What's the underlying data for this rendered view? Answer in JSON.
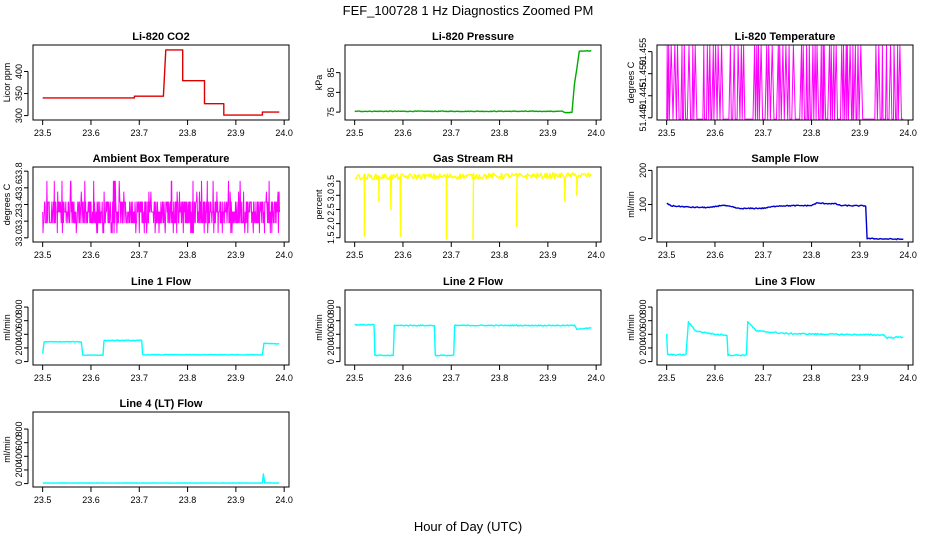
{
  "figure": {
    "title": "FEF_100728  1 Hz Diagnostics Zoomed PM",
    "xlabel": "Hour of Day (UTC)"
  },
  "chart_data": [
    {
      "type": "line",
      "title": "Li-820 CO2",
      "ylabel": "Licor ppm",
      "color": "#dd0000",
      "xlim": [
        23.48,
        24.01
      ],
      "ylim": [
        290,
        460
      ],
      "xticks": [
        "23.5",
        "23.6",
        "23.7",
        "23.8",
        "23.9",
        "24.0"
      ],
      "yticks": [
        {
          "v": 300,
          "label": "300"
        },
        {
          "v": 350,
          "label": "350"
        },
        {
          "v": 400,
          "label": "400"
        }
      ],
      "noise": 0,
      "points": [
        [
          23.5,
          340
        ],
        [
          23.69,
          340
        ],
        [
          23.69,
          344
        ],
        [
          23.75,
          344
        ],
        [
          23.755,
          449
        ],
        [
          23.765,
          449
        ],
        [
          23.79,
          449
        ],
        [
          23.79,
          379
        ],
        [
          23.835,
          379
        ],
        [
          23.835,
          327
        ],
        [
          23.875,
          327
        ],
        [
          23.875,
          301
        ],
        [
          23.955,
          301
        ],
        [
          23.955,
          308
        ],
        [
          23.99,
          308
        ]
      ]
    },
    {
      "type": "line",
      "title": "Li-820 Pressure",
      "ylabel": "kPa",
      "color": "#00aa00",
      "xlim": [
        23.48,
        24.01
      ],
      "ylim": [
        73,
        92
      ],
      "xticks": [
        "23.5",
        "23.6",
        "23.7",
        "23.8",
        "23.9",
        "24.0"
      ],
      "yticks": [
        {
          "v": 75,
          "label": "75"
        },
        {
          "v": 80,
          "label": "80"
        },
        {
          "v": 85,
          "label": "85"
        }
      ],
      "noise": 0.08,
      "points": [
        [
          23.5,
          75.2
        ],
        [
          23.93,
          75.2
        ],
        [
          23.935,
          74.9
        ],
        [
          23.95,
          74.9
        ],
        [
          23.955,
          82
        ],
        [
          23.96,
          86
        ],
        [
          23.965,
          90.5
        ],
        [
          23.99,
          90.5
        ]
      ]
    },
    {
      "type": "step",
      "title": "Li-820 Temperature",
      "ylabel": "degrees C",
      "color": "#ff00ff",
      "xlim": [
        23.48,
        24.01
      ],
      "ylim": [
        51.4395,
        51.4565
      ],
      "xticks": [
        "23.5",
        "23.6",
        "23.7",
        "23.8",
        "23.9",
        "24.0"
      ],
      "yticks": [
        {
          "v": 51.44,
          "label": "51.440"
        },
        {
          "v": 51.445,
          "label": "51.445"
        },
        {
          "v": 51.45,
          "label": "51.450"
        },
        {
          "v": 51.455,
          "label": "51.455"
        }
      ],
      "levels": [
        51.4397,
        51.4563
      ],
      "xrange": [
        23.5,
        23.99
      ]
    },
    {
      "type": "noise",
      "title": "Ambient Box Temperature",
      "ylabel": "degrees C",
      "color": "#ff00ff",
      "xlim": [
        23.48,
        24.01
      ],
      "ylim": [
        32.95,
        33.85
      ],
      "xticks": [
        "23.5",
        "23.6",
        "23.7",
        "23.8",
        "23.9",
        "24.0"
      ],
      "yticks": [
        {
          "v": 33.0,
          "label": "33.0"
        },
        {
          "v": 33.2,
          "label": "33.2"
        },
        {
          "v": 33.4,
          "label": "33.4"
        },
        {
          "v": 33.6,
          "label": "33.6"
        },
        {
          "v": 33.8,
          "label": "33.8"
        }
      ],
      "levels": [
        33.06,
        33.18,
        33.31,
        33.43,
        33.55,
        33.68
      ],
      "xrange": [
        23.5,
        23.99
      ]
    },
    {
      "type": "line",
      "title": "Gas Stream RH",
      "ylabel": "percent",
      "color": "#ffff00",
      "xlim": [
        23.48,
        24.01
      ],
      "ylim": [
        1.35,
        4.0
      ],
      "xticks": [
        "23.5",
        "23.6",
        "23.7",
        "23.8",
        "23.9",
        "24.0"
      ],
      "yticks": [
        {
          "v": 1.5,
          "label": "1.5"
        },
        {
          "v": 2.0,
          "label": "2.0"
        },
        {
          "v": 2.5,
          "label": "2.5"
        },
        {
          "v": 3.0,
          "label": "3.0"
        },
        {
          "v": 3.5,
          "label": "3.5"
        }
      ],
      "noise": 0.1,
      "points": [
        [
          23.5,
          3.65
        ],
        [
          23.99,
          3.7
        ]
      ],
      "spikes": [
        [
          23.52,
          1.55
        ],
        [
          23.55,
          2.8
        ],
        [
          23.575,
          2.5
        ],
        [
          23.595,
          1.55
        ],
        [
          23.69,
          1.45
        ],
        [
          23.745,
          1.45
        ],
        [
          23.835,
          1.9
        ],
        [
          23.935,
          2.8
        ],
        [
          23.96,
          3.0
        ]
      ]
    },
    {
      "type": "line",
      "title": "Sample Flow",
      "ylabel": "ml/min",
      "color": "#0000cc",
      "xlim": [
        23.48,
        24.01
      ],
      "ylim": [
        -10,
        210
      ],
      "xticks": [
        "23.5",
        "23.6",
        "23.7",
        "23.8",
        "23.9",
        "24.0"
      ],
      "yticks": [
        {
          "v": 0,
          "label": "0"
        },
        {
          "v": 100,
          "label": "100"
        },
        {
          "v": 200,
          "label": "200"
        }
      ],
      "noise": 1.5,
      "points": [
        [
          23.5,
          103
        ],
        [
          23.51,
          96
        ],
        [
          23.55,
          92
        ],
        [
          23.59,
          91
        ],
        [
          23.615,
          98
        ],
        [
          23.635,
          93
        ],
        [
          23.65,
          88
        ],
        [
          23.7,
          89
        ],
        [
          23.73,
          96
        ],
        [
          23.8,
          97
        ],
        [
          23.81,
          104
        ],
        [
          23.85,
          102
        ],
        [
          23.86,
          97
        ],
        [
          23.912,
          96
        ],
        [
          23.915,
          0
        ],
        [
          23.99,
          -2
        ]
      ]
    },
    {
      "type": "line",
      "title": "Line 1 Flow",
      "ylabel": "ml/min",
      "color": "#00ffff",
      "xlim": [
        23.48,
        24.01
      ],
      "ylim": [
        -50,
        1050
      ],
      "xticks": [
        "23.5",
        "23.6",
        "23.7",
        "23.8",
        "23.9",
        "24.0"
      ],
      "yticks": [
        {
          "v": 0,
          "label": "0"
        },
        {
          "v": 200,
          "label": "200"
        },
        {
          "v": 400,
          "label": "400"
        },
        {
          "v": 600,
          "label": "600"
        },
        {
          "v": 800,
          "label": "800"
        }
      ],
      "noise": 5,
      "points": [
        [
          23.5,
          120
        ],
        [
          23.503,
          290
        ],
        [
          23.58,
          290
        ],
        [
          23.583,
          95
        ],
        [
          23.625,
          95
        ],
        [
          23.627,
          310
        ],
        [
          23.705,
          310
        ],
        [
          23.707,
          100
        ],
        [
          23.955,
          100
        ],
        [
          23.958,
          270
        ],
        [
          23.99,
          260
        ]
      ]
    },
    {
      "type": "line",
      "title": "Line 2 Flow",
      "ylabel": "ml/min",
      "color": "#00ffff",
      "xlim": [
        23.48,
        24.01
      ],
      "ylim": [
        -50,
        1050
      ],
      "xticks": [
        "23.5",
        "23.6",
        "23.7",
        "23.8",
        "23.9",
        "24.0"
      ],
      "yticks": [
        {
          "v": 0,
          "label": "0"
        },
        {
          "v": 200,
          "label": "200"
        },
        {
          "v": 400,
          "label": "400"
        },
        {
          "v": 600,
          "label": "600"
        },
        {
          "v": 800,
          "label": "800"
        }
      ],
      "noise": 7,
      "points": [
        [
          23.5,
          540
        ],
        [
          23.54,
          540
        ],
        [
          23.542,
          90
        ],
        [
          23.58,
          90
        ],
        [
          23.582,
          530
        ],
        [
          23.665,
          530
        ],
        [
          23.667,
          90
        ],
        [
          23.705,
          90
        ],
        [
          23.707,
          530
        ],
        [
          23.955,
          530
        ],
        [
          23.96,
          480
        ],
        [
          23.99,
          490
        ]
      ]
    },
    {
      "type": "line",
      "title": "Line 3 Flow",
      "ylabel": "ml/min",
      "color": "#00ffff",
      "xlim": [
        23.48,
        24.01
      ],
      "ylim": [
        -50,
        1050
      ],
      "xticks": [
        "23.5",
        "23.6",
        "23.7",
        "23.8",
        "23.9",
        "24.0"
      ],
      "yticks": [
        {
          "v": 0,
          "label": "0"
        },
        {
          "v": 200,
          "label": "200"
        },
        {
          "v": 400,
          "label": "400"
        },
        {
          "v": 600,
          "label": "600"
        },
        {
          "v": 800,
          "label": "800"
        }
      ],
      "noise": 10,
      "points": [
        [
          23.5,
          400
        ],
        [
          23.502,
          100
        ],
        [
          23.54,
          100
        ],
        [
          23.545,
          580
        ],
        [
          23.56,
          450
        ],
        [
          23.6,
          400
        ],
        [
          23.625,
          390
        ],
        [
          23.627,
          95
        ],
        [
          23.665,
          95
        ],
        [
          23.668,
          590
        ],
        [
          23.685,
          450
        ],
        [
          23.75,
          410
        ],
        [
          23.95,
          390
        ],
        [
          23.955,
          350
        ],
        [
          23.99,
          360
        ]
      ]
    },
    {
      "type": "line",
      "title": "Line 4 (LT) Flow",
      "ylabel": "ml/min",
      "color": "#00ffff",
      "xlim": [
        23.48,
        24.01
      ],
      "ylim": [
        -50,
        1050
      ],
      "xticks": [
        "23.5",
        "23.6",
        "23.7",
        "23.8",
        "23.9",
        "24.0"
      ],
      "yticks": [
        {
          "v": 0,
          "label": "0"
        },
        {
          "v": 200,
          "label": "200"
        },
        {
          "v": 400,
          "label": "400"
        },
        {
          "v": 600,
          "label": "600"
        },
        {
          "v": 800,
          "label": "800"
        }
      ],
      "noise": 2,
      "points": [
        [
          23.5,
          8
        ],
        [
          23.955,
          8
        ],
        [
          23.957,
          140
        ],
        [
          23.96,
          10
        ],
        [
          23.99,
          8
        ]
      ]
    }
  ]
}
